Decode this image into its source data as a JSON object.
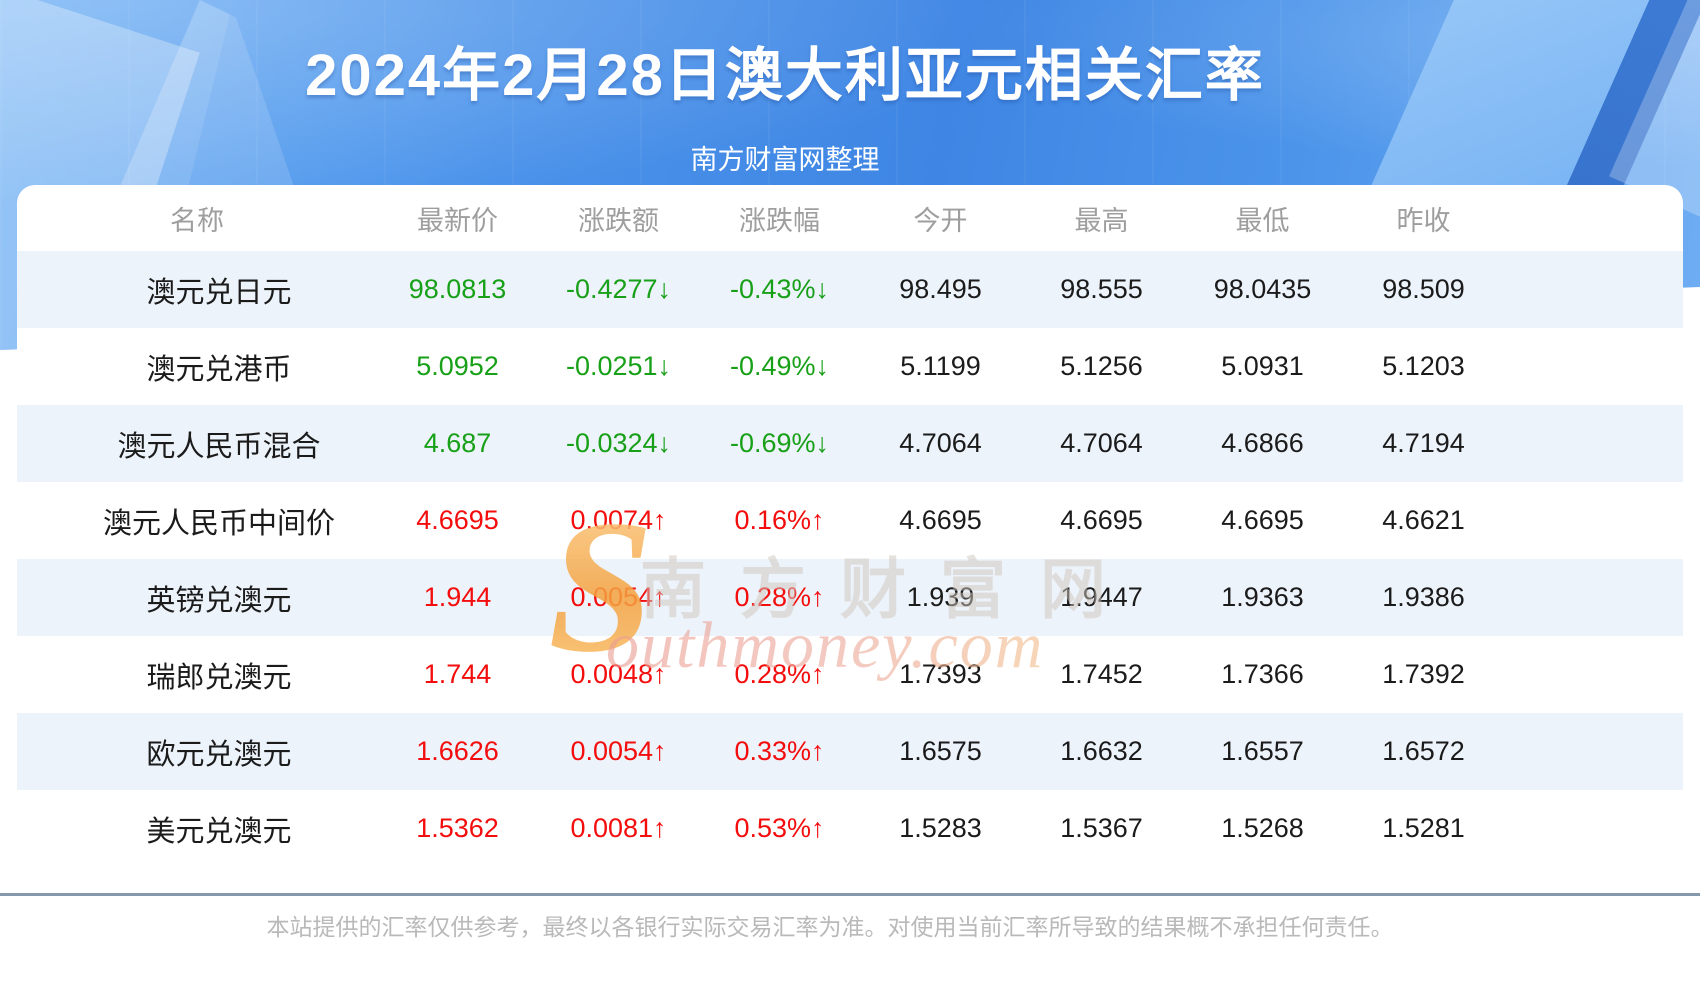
{
  "page": {
    "title": "2024年2月28日澳大利亚元相关汇率",
    "subtitle": "南方财富网整理"
  },
  "table": {
    "columns": [
      {
        "key": "name",
        "label": "名称"
      },
      {
        "key": "latest",
        "label": "最新价"
      },
      {
        "key": "change",
        "label": "涨跌额"
      },
      {
        "key": "change_pct",
        "label": "涨跌幅"
      },
      {
        "key": "open",
        "label": "今开"
      },
      {
        "key": "high",
        "label": "最高"
      },
      {
        "key": "low",
        "label": "最低"
      },
      {
        "key": "prev_close",
        "label": "昨收"
      }
    ],
    "rows": [
      {
        "name": "澳元兑日元",
        "latest": "98.0813",
        "change": "-0.4277↓",
        "change_pct": "-0.43%↓",
        "direction": "down",
        "open": "98.495",
        "high": "98.555",
        "low": "98.0435",
        "prev_close": "98.509"
      },
      {
        "name": "澳元兑港币",
        "latest": "5.0952",
        "change": "-0.0251↓",
        "change_pct": "-0.49%↓",
        "direction": "down",
        "open": "5.1199",
        "high": "5.1256",
        "low": "5.0931",
        "prev_close": "5.1203"
      },
      {
        "name": "澳元人民币混合",
        "latest": "4.687",
        "change": "-0.0324↓",
        "change_pct": "-0.69%↓",
        "direction": "down",
        "open": "4.7064",
        "high": "4.7064",
        "low": "4.6866",
        "prev_close": "4.7194"
      },
      {
        "name": "澳元人民币中间价",
        "latest": "4.6695",
        "change": "0.0074↑",
        "change_pct": "0.16%↑",
        "direction": "up",
        "open": "4.6695",
        "high": "4.6695",
        "low": "4.6695",
        "prev_close": "4.6621"
      },
      {
        "name": "英镑兑澳元",
        "latest": "1.944",
        "change": "0.0054↑",
        "change_pct": "0.28%↑",
        "direction": "up",
        "open": "1.939",
        "high": "1.9447",
        "low": "1.9363",
        "prev_close": "1.9386"
      },
      {
        "name": "瑞郎兑澳元",
        "latest": "1.744",
        "change": "0.0048↑",
        "change_pct": "0.28%↑",
        "direction": "up",
        "open": "1.7393",
        "high": "1.7452",
        "low": "1.7366",
        "prev_close": "1.7392"
      },
      {
        "name": "欧元兑澳元",
        "latest": "1.6626",
        "change": "0.0054↑",
        "change_pct": "0.33%↑",
        "direction": "up",
        "open": "1.6575",
        "high": "1.6632",
        "low": "1.6557",
        "prev_close": "1.6572"
      },
      {
        "name": "美元兑澳元",
        "latest": "1.5362",
        "change": "0.0081↑",
        "change_pct": "0.53%↑",
        "direction": "up",
        "open": "1.5283",
        "high": "1.5367",
        "low": "1.5268",
        "prev_close": "1.5281"
      }
    ]
  },
  "watermark": {
    "swoosh_letter": "S",
    "cn_text": "南方财富网",
    "en_text": "outhmoney.com"
  },
  "footer": {
    "disclaimer": "本站提供的汇率仅供参考，最终以各银行实际交易汇率为准。对使用当前汇率所导致的结果概不承担任何责任。"
  },
  "colors": {
    "up_red": "#f30d0d",
    "down_green": "#18a018",
    "header_text": "#9e9e9e",
    "row_alt_bg": "#edf3fb",
    "banner_blue": "#4a92ea",
    "divider_gray": "#8598ac"
  }
}
